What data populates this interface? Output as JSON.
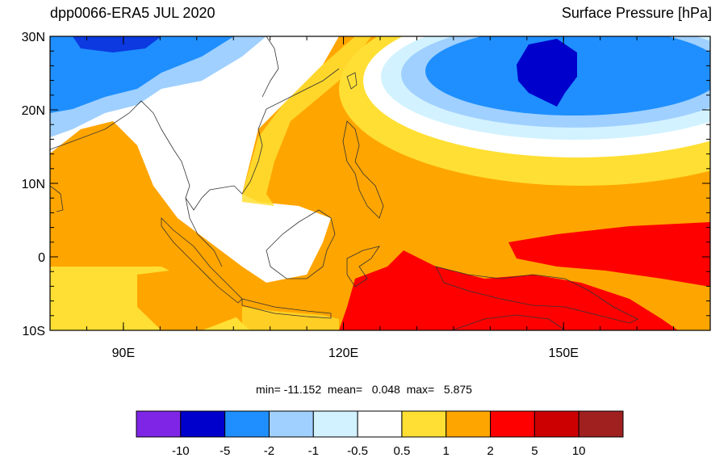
{
  "header": {
    "left_title": "dpp0066-ERA5 JUL 2020",
    "right_title": "Surface Pressure [hPa]"
  },
  "map": {
    "lon_range": [
      80,
      170
    ],
    "lat_range": [
      -10,
      30
    ],
    "lat_ticks": [
      {
        "value": 30,
        "label": "30N"
      },
      {
        "value": 20,
        "label": "20N"
      },
      {
        "value": 10,
        "label": "10N"
      },
      {
        "value": 0,
        "label": "0"
      },
      {
        "value": -10,
        "label": "10S"
      }
    ],
    "lon_ticks": [
      {
        "value": 90,
        "label": "90E"
      },
      {
        "value": 120,
        "label": "120E"
      },
      {
        "value": 150,
        "label": "150E"
      }
    ]
  },
  "stats": {
    "min_label": "min=",
    "min_value": "-11.152",
    "mean_label": "mean=",
    "mean_value": "0.048",
    "max_label": "max=",
    "max_value": "5.875"
  },
  "colorbar": {
    "colors": [
      "#7f26e6",
      "#0000cc",
      "#1f8fff",
      "#a0d0ff",
      "#d2f2ff",
      "#ffffff",
      "#ffdf33",
      "#ffa500",
      "#ff0000",
      "#cc0000",
      "#a02020"
    ],
    "labels": [
      "-10",
      "-5",
      "-2",
      "-1",
      "-0.5",
      "0.5",
      "1",
      "2",
      "5",
      "10"
    ]
  },
  "palette": {
    "land_outline": "#333333"
  }
}
